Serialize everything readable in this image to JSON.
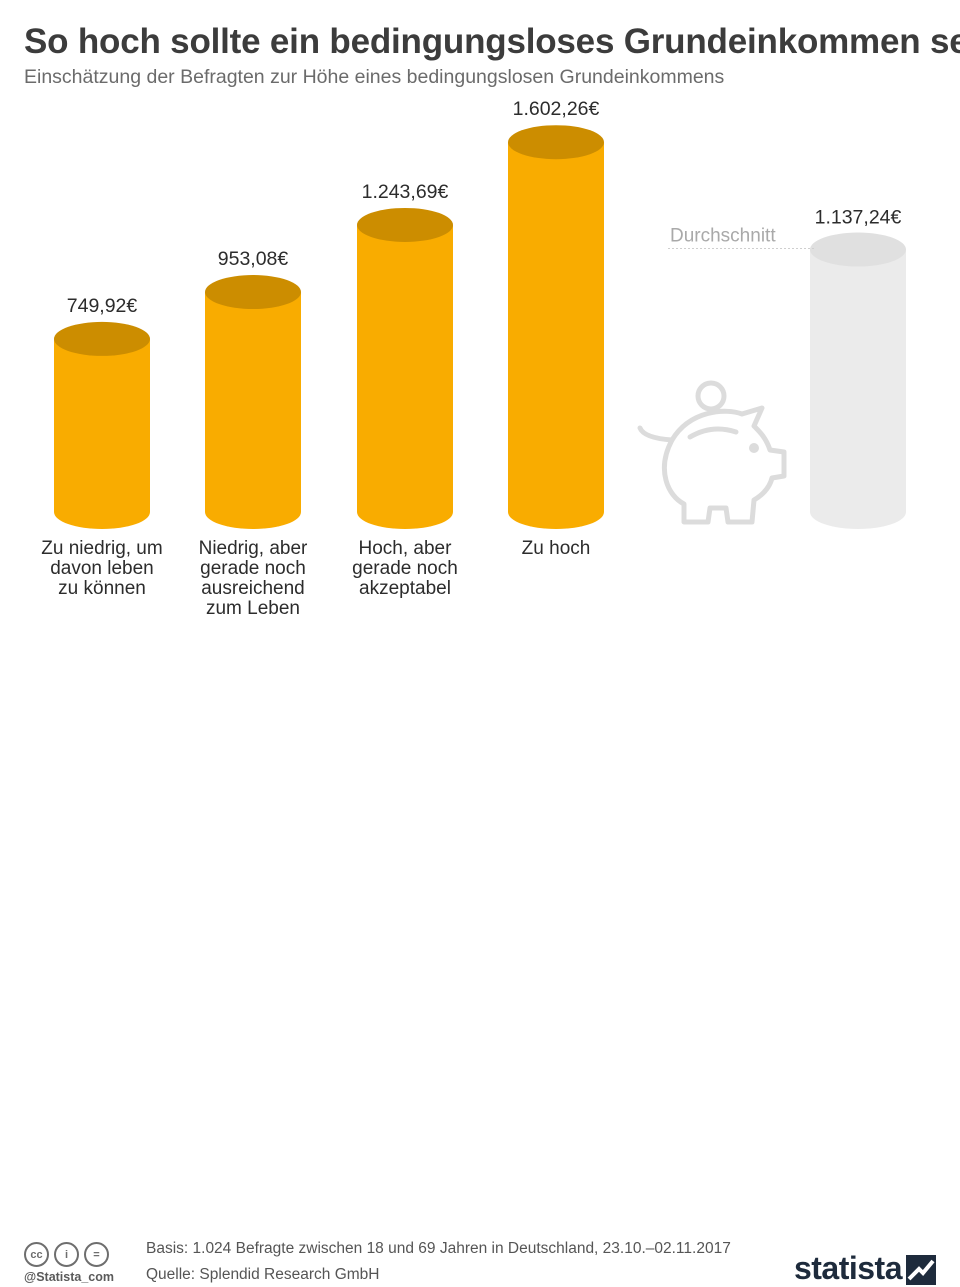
{
  "title": "So hoch sollte ein bedingungsloses Grundeinkommen sein",
  "subtitle": "Einschätzung der Befragten zur Höhe eines bedingungslosen Grundeinkommens",
  "chart_data": {
    "type": "bar",
    "unit": "€",
    "categories": [
      [
        "Zu niedrig, um",
        "davon leben",
        "zu können"
      ],
      [
        "Niedrig, aber",
        "gerade noch",
        "ausreichend",
        "zum Leben"
      ],
      [
        "Hoch, aber",
        "gerade noch",
        "akzeptabel"
      ],
      [
        "Zu hoch"
      ]
    ],
    "values": [
      749.92,
      953.08,
      1243.69,
      1602.26
    ],
    "value_labels": [
      "749,92€",
      "953,08€",
      "1.243,69€",
      "1.602,26€"
    ],
    "average": {
      "label": "Durchschnitt",
      "value": 1137.24,
      "value_label": "1.137,24€"
    },
    "colors": {
      "bar": "#f9ac00",
      "bar_top": "#cc8d00",
      "average": "#ebebeb",
      "icon": "#dcdcdc"
    }
  },
  "footer": {
    "cc_icons": [
      "cc-icon",
      "by-icon",
      "nd-icon"
    ],
    "cc_glyphs": [
      "cc",
      "i",
      "="
    ],
    "handle": "@Statista_com",
    "basis": "Basis: 1.024 Befragte zwischen 18 und 69 Jahren in Deutschland, 23.10.–02.11.2017",
    "source": "Quelle: Splendid Research GmbH",
    "brand": "statista"
  }
}
